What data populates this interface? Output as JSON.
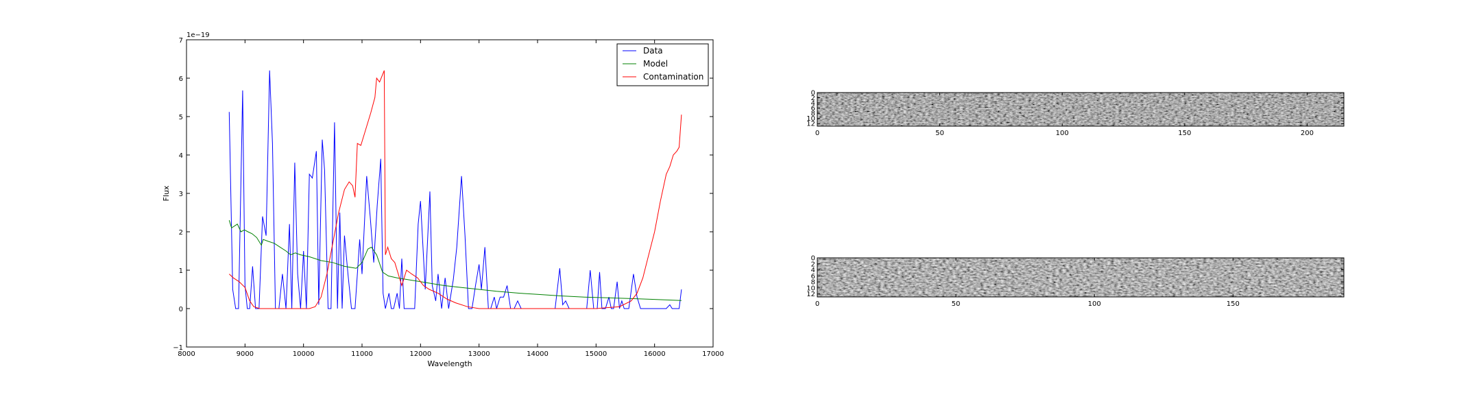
{
  "colors": {
    "data": "#0000ff",
    "model": "#008000",
    "contamination": "#ff0000",
    "axes": "#000000"
  },
  "chart_data": [
    {
      "type": "line",
      "title": "",
      "xlabel": "Wavelength",
      "ylabel": "Flux",
      "offset_label": "1e−19",
      "xlim": [
        8000,
        17000
      ],
      "ylim": [
        -1,
        7
      ],
      "x_ticks": [
        "8000",
        "9000",
        "10000",
        "11000",
        "12000",
        "13000",
        "14000",
        "15000",
        "16000",
        "17000"
      ],
      "y_ticks": [
        "−1",
        "0",
        "1",
        "2",
        "3",
        "4",
        "5",
        "6",
        "7"
      ],
      "grid": false,
      "legend_position": "top-right",
      "legend": [
        "Data",
        "Model",
        "Contamination"
      ],
      "series": [
        {
          "name": "Data",
          "color": "#0000ff",
          "points": [
            [
              8730,
              5.12
            ],
            [
              8790,
              0.5
            ],
            [
              8840,
              0
            ],
            [
              8890,
              0
            ],
            [
              8960,
              5.68
            ],
            [
              9000,
              0.6
            ],
            [
              9040,
              0
            ],
            [
              9080,
              0
            ],
            [
              9130,
              1.1
            ],
            [
              9180,
              0
            ],
            [
              9240,
              0
            ],
            [
              9300,
              2.4
            ],
            [
              9360,
              1.9
            ],
            [
              9420,
              6.2
            ],
            [
              9470,
              4.3
            ],
            [
              9520,
              0
            ],
            [
              9580,
              0
            ],
            [
              9640,
              0.9
            ],
            [
              9700,
              0
            ],
            [
              9760,
              2.2
            ],
            [
              9800,
              0
            ],
            [
              9850,
              3.8
            ],
            [
              9900,
              0.9
            ],
            [
              9950,
              0
            ],
            [
              10000,
              1.5
            ],
            [
              10050,
              0
            ],
            [
              10100,
              3.5
            ],
            [
              10150,
              3.4
            ],
            [
              10220,
              4.1
            ],
            [
              10260,
              0.1
            ],
            [
              10320,
              4.4
            ],
            [
              10360,
              3.6
            ],
            [
              10420,
              0
            ],
            [
              10470,
              0
            ],
            [
              10530,
              4.85
            ],
            [
              10580,
              0
            ],
            [
              10620,
              2.5
            ],
            [
              10660,
              0
            ],
            [
              10700,
              1.9
            ],
            [
              10760,
              0.9
            ],
            [
              10820,
              0
            ],
            [
              10880,
              0
            ],
            [
              10960,
              1.8
            ],
            [
              11000,
              0.9
            ],
            [
              11080,
              3.45
            ],
            [
              11140,
              2.4
            ],
            [
              11200,
              1.2
            ],
            [
              11260,
              2.7
            ],
            [
              11320,
              3.9
            ],
            [
              11360,
              0.4
            ],
            [
              11400,
              0
            ],
            [
              11460,
              0.4
            ],
            [
              11500,
              0
            ],
            [
              11540,
              0
            ],
            [
              11600,
              0.4
            ],
            [
              11640,
              0
            ],
            [
              11680,
              1.3
            ],
            [
              11720,
              0
            ],
            [
              11780,
              0
            ],
            [
              11840,
              0
            ],
            [
              11900,
              0
            ],
            [
              11960,
              2.2
            ],
            [
              12000,
              2.8
            ],
            [
              12080,
              0.5
            ],
            [
              12160,
              3.05
            ],
            [
              12200,
              0.6
            ],
            [
              12260,
              0.2
            ],
            [
              12300,
              0.9
            ],
            [
              12360,
              0
            ],
            [
              12420,
              0.8
            ],
            [
              12480,
              0
            ],
            [
              12560,
              0.75
            ],
            [
              12620,
              1.6
            ],
            [
              12700,
              3.45
            ],
            [
              12760,
              1.9
            ],
            [
              12820,
              0
            ],
            [
              12880,
              0
            ],
            [
              12940,
              0.6
            ],
            [
              13000,
              1.15
            ],
            [
              13040,
              0.5
            ],
            [
              13100,
              1.6
            ],
            [
              13160,
              0
            ],
            [
              13200,
              0
            ],
            [
              13260,
              0.3
            ],
            [
              13300,
              0
            ],
            [
              13360,
              0.3
            ],
            [
              13420,
              0.3
            ],
            [
              13480,
              0.6
            ],
            [
              13540,
              0
            ],
            [
              13600,
              0
            ],
            [
              13660,
              0.2
            ],
            [
              13720,
              0
            ],
            [
              13800,
              0
            ],
            [
              13900,
              0
            ],
            [
              14000,
              0
            ],
            [
              14100,
              0
            ],
            [
              14200,
              0
            ],
            [
              14300,
              0
            ],
            [
              14380,
              1.05
            ],
            [
              14430,
              0.1
            ],
            [
              14480,
              0.2
            ],
            [
              14540,
              0
            ],
            [
              14600,
              0
            ],
            [
              14700,
              0
            ],
            [
              14760,
              0
            ],
            [
              14840,
              0
            ],
            [
              14900,
              1.0
            ],
            [
              14960,
              0
            ],
            [
              15020,
              0
            ],
            [
              15060,
              0.95
            ],
            [
              15100,
              0
            ],
            [
              15160,
              0
            ],
            [
              15220,
              0.3
            ],
            [
              15260,
              0
            ],
            [
              15300,
              0
            ],
            [
              15360,
              0.7
            ],
            [
              15400,
              0
            ],
            [
              15440,
              0.2
            ],
            [
              15480,
              0
            ],
            [
              15560,
              0
            ],
            [
              15640,
              0.9
            ],
            [
              15700,
              0.3
            ],
            [
              15760,
              0
            ],
            [
              15900,
              0
            ],
            [
              16000,
              0
            ],
            [
              16100,
              0
            ],
            [
              16200,
              0
            ],
            [
              16260,
              0.1
            ],
            [
              16300,
              0
            ],
            [
              16380,
              0
            ],
            [
              16420,
              0
            ],
            [
              16460,
              0.5
            ]
          ]
        },
        {
          "name": "Model",
          "color": "#008000",
          "points": [
            [
              8730,
              2.3
            ],
            [
              8770,
              2.1
            ],
            [
              8820,
              2.15
            ],
            [
              8870,
              2.2
            ],
            [
              8930,
              2.0
            ],
            [
              8990,
              2.05
            ],
            [
              9050,
              2.0
            ],
            [
              9120,
              1.95
            ],
            [
              9200,
              1.85
            ],
            [
              9280,
              1.65
            ],
            [
              9310,
              1.8
            ],
            [
              9400,
              1.75
            ],
            [
              9500,
              1.7
            ],
            [
              9600,
              1.6
            ],
            [
              9700,
              1.5
            ],
            [
              9780,
              1.4
            ],
            [
              9860,
              1.45
            ],
            [
              9950,
              1.4
            ],
            [
              10100,
              1.35
            ],
            [
              10300,
              1.25
            ],
            [
              10500,
              1.2
            ],
            [
              10700,
              1.1
            ],
            [
              10900,
              1.05
            ],
            [
              11000,
              1.2
            ],
            [
              11100,
              1.55
            ],
            [
              11160,
              1.6
            ],
            [
              11250,
              1.4
            ],
            [
              11350,
              0.95
            ],
            [
              11450,
              0.85
            ],
            [
              11600,
              0.8
            ],
            [
              11800,
              0.75
            ],
            [
              12000,
              0.7
            ],
            [
              12200,
              0.65
            ],
            [
              12400,
              0.6
            ],
            [
              12700,
              0.55
            ],
            [
              13000,
              0.5
            ],
            [
              13300,
              0.45
            ],
            [
              13700,
              0.4
            ],
            [
              14000,
              0.37
            ],
            [
              14400,
              0.33
            ],
            [
              14800,
              0.3
            ],
            [
              15200,
              0.28
            ],
            [
              15600,
              0.26
            ],
            [
              16000,
              0.24
            ],
            [
              16460,
              0.21
            ]
          ]
        },
        {
          "name": "Contamination",
          "color": "#ff0000",
          "points": [
            [
              8730,
              0.9
            ],
            [
              8800,
              0.8
            ],
            [
              8900,
              0.7
            ],
            [
              9000,
              0.55
            ],
            [
              9080,
              0.2
            ],
            [
              9150,
              0.05
            ],
            [
              9250,
              0
            ],
            [
              9400,
              0
            ],
            [
              9600,
              0
            ],
            [
              9800,
              0
            ],
            [
              10000,
              0
            ],
            [
              10100,
              0
            ],
            [
              10200,
              0.05
            ],
            [
              10300,
              0.3
            ],
            [
              10400,
              0.9
            ],
            [
              10500,
              1.7
            ],
            [
              10600,
              2.5
            ],
            [
              10700,
              3.1
            ],
            [
              10780,
              3.3
            ],
            [
              10840,
              3.2
            ],
            [
              10880,
              2.9
            ],
            [
              10920,
              4.3
            ],
            [
              10980,
              4.25
            ],
            [
              11050,
              4.6
            ],
            [
              11150,
              5.1
            ],
            [
              11220,
              5.5
            ],
            [
              11250,
              6.0
            ],
            [
              11300,
              5.9
            ],
            [
              11380,
              6.2
            ],
            [
              11400,
              1.4
            ],
            [
              11440,
              1.6
            ],
            [
              11500,
              1.3
            ],
            [
              11560,
              1.2
            ],
            [
              11620,
              0.9
            ],
            [
              11680,
              0.6
            ],
            [
              11760,
              1.0
            ],
            [
              11850,
              0.9
            ],
            [
              11950,
              0.8
            ],
            [
              12050,
              0.6
            ],
            [
              12150,
              0.5
            ],
            [
              12300,
              0.4
            ],
            [
              12450,
              0.25
            ],
            [
              12600,
              0.15
            ],
            [
              12800,
              0.05
            ],
            [
              13000,
              0
            ],
            [
              13400,
              0
            ],
            [
              14000,
              0
            ],
            [
              14600,
              0
            ],
            [
              15000,
              0
            ],
            [
              15400,
              0.05
            ],
            [
              15600,
              0.2
            ],
            [
              15700,
              0.4
            ],
            [
              15800,
              0.8
            ],
            [
              15900,
              1.4
            ],
            [
              16000,
              2.0
            ],
            [
              16100,
              2.8
            ],
            [
              16200,
              3.5
            ],
            [
              16260,
              3.7
            ],
            [
              16320,
              4.0
            ],
            [
              16380,
              4.1
            ],
            [
              16420,
              4.2
            ],
            [
              16460,
              5.05
            ]
          ]
        }
      ]
    },
    {
      "type": "heatmap",
      "title": "",
      "colormap": "gray",
      "x_ticks": [
        "0",
        "50",
        "100",
        "150",
        "200"
      ],
      "y_ticks": [
        "0",
        "2",
        "4",
        "6",
        "8",
        "10",
        "12"
      ],
      "xlim": [
        0,
        215
      ],
      "ylim": [
        13,
        0
      ]
    },
    {
      "type": "heatmap",
      "title": "",
      "colormap": "gray",
      "x_ticks": [
        "0",
        "50",
        "100",
        "150"
      ],
      "y_ticks": [
        "0",
        "2",
        "4",
        "6",
        "8",
        "10",
        "12"
      ],
      "xlim": [
        0,
        190
      ],
      "ylim": [
        13,
        0
      ]
    }
  ]
}
